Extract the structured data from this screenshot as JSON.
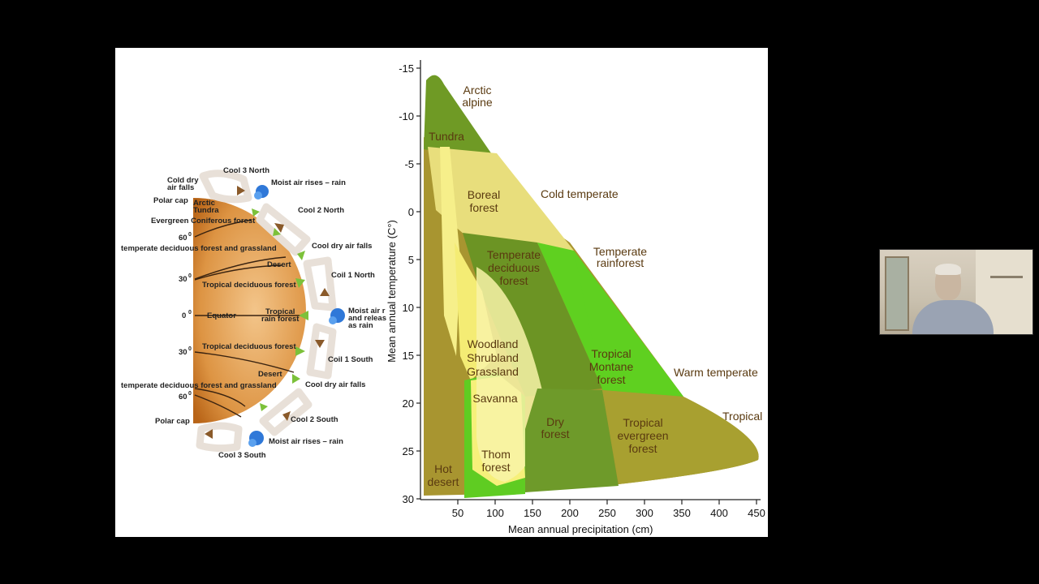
{
  "circulation": {
    "labels": {
      "cool3_north": "Cool 3 North",
      "cold_dry_air_falls_1": "Cold dry",
      "cold_dry_air_falls_2": "air falls",
      "moist_air_rises_top": "Moist air rises – rain",
      "polar_cap_top": "Polar cap",
      "arctic_tundra_1": "Arctic",
      "arctic_tundra_2": "Tundra",
      "cool2_north": "Cool 2 North",
      "evergreen_coniferous": "Evergreen Coniferous forest",
      "lat60_top": "60",
      "cool_dry_air_falls_top": "Cool dry air falls",
      "temperate_deciduous_top": "temperate deciduous forest and grassland",
      "desert_top": "Desert",
      "coil1_north": "Coil 1 North",
      "lat30_top": "30",
      "tropical_deciduous_top": "Tropical deciduous forest",
      "lat0": "0",
      "equator": "Equator",
      "tropical_rain_1": "Tropical",
      "tropical_rain_2": "rain forest",
      "moist_air_mid_1": "Moist air r",
      "moist_air_mid_2": "and releas",
      "moist_air_mid_3": "as rain",
      "lat30_bottom": "30",
      "tropical_deciduous_bottom": "Tropical deciduous forest",
      "coil1_south": "Coil 1 South",
      "desert_bottom": "Desert",
      "temperate_deciduous_bottom": "temperate deciduous forest and grassland",
      "cool_dry_air_falls_bottom": "Cool dry air falls",
      "lat60_bottom": "60",
      "polar_cap_bottom": "Polar cap",
      "cool2_south": "Cool 2 South",
      "moist_air_rises_bottom": "Moist air rises – rain",
      "cool3_south": "Cool 3 South",
      "degree": "0"
    }
  },
  "chart_data": {
    "type": "area",
    "xlabel": "Mean annual precipitation (cm)",
    "ylabel": "Mean annual temperature (C°)",
    "xlim": [
      0,
      450
    ],
    "ylim": [
      -15,
      30
    ],
    "x_ticks": [
      "50",
      "100",
      "150",
      "200",
      "250",
      "300",
      "350",
      "400",
      "450"
    ],
    "y_ticks": [
      "-15",
      "-10",
      "-5",
      "0",
      "5",
      "10",
      "15",
      "20",
      "25",
      "30"
    ],
    "biomes": [
      {
        "name": "Arctic alpine",
        "lines": [
          "Arctic",
          "alpine"
        ],
        "color": "#6f9a25"
      },
      {
        "name": "Tundra",
        "lines": [
          "Tundra"
        ],
        "color": "#6f9a25"
      },
      {
        "name": "Boreal forest",
        "lines": [
          "Boreal",
          "forest"
        ],
        "color": "#e8de7c"
      },
      {
        "name": "Temperate deciduous forest",
        "lines": [
          "Temperate",
          "deciduous",
          "forest"
        ],
        "color": "#6c9424"
      },
      {
        "name": "Temperate rainforest",
        "lines": [
          "Temperate",
          "rainforest"
        ],
        "color": "#5fd020"
      },
      {
        "name": "Woodland Shrubland Grassland",
        "lines": [
          "Woodland",
          "Shrubland",
          "Grassland"
        ],
        "color": "#f4ec74"
      },
      {
        "name": "Savanna",
        "lines": [
          "Savanna"
        ],
        "color": "#f6f07a"
      },
      {
        "name": "Thorn forest",
        "lines": [
          "Thom",
          "forest"
        ],
        "color": "#f8f3a8"
      },
      {
        "name": "Dry forest",
        "lines": [
          "Dry",
          "forest"
        ],
        "color": "#6e9a2a"
      },
      {
        "name": "Tropical Montane forest",
        "lines": [
          "Tropical",
          "Montane",
          "forest"
        ],
        "color": "#5fd020"
      },
      {
        "name": "Tropical evergreen forest",
        "lines": [
          "Tropical",
          "evergreen",
          "forest"
        ],
        "color": "#a8a030"
      },
      {
        "name": "Hot desert",
        "lines": [
          "Hot",
          "desert"
        ],
        "color": "#a89530"
      }
    ],
    "zones": [
      {
        "name": "Cold temperate"
      },
      {
        "name": "Temperate"
      },
      {
        "name": "Warm temperate"
      },
      {
        "name": "Tropical"
      }
    ]
  }
}
